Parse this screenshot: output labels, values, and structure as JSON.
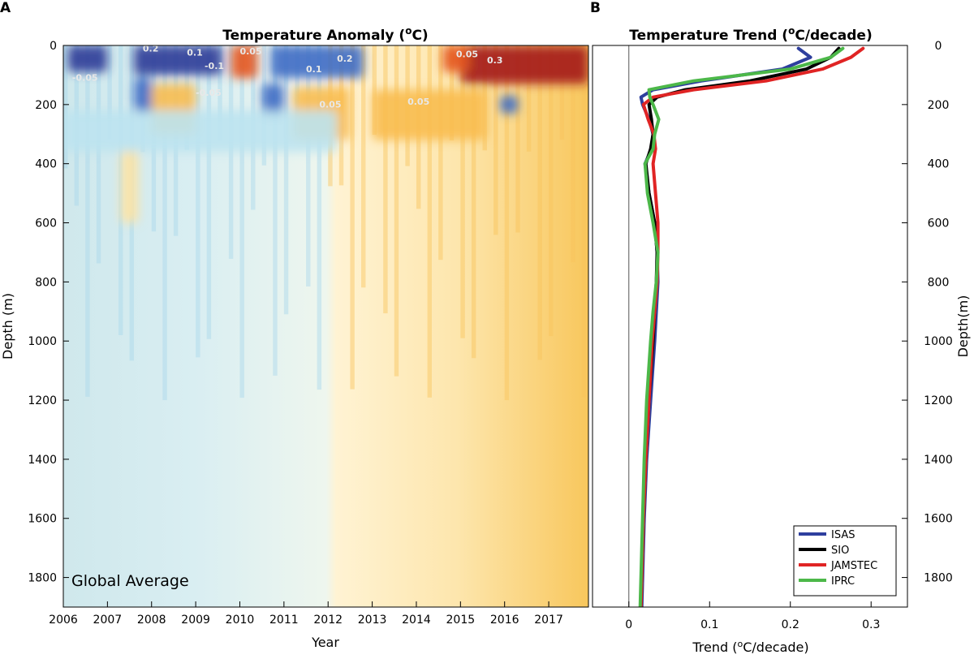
{
  "panel_a": {
    "letter": "A",
    "title_main": "Temperature Anomaly (",
    "title_sup": "o",
    "title_end": "C)",
    "xlabel": "Year",
    "ylabel": "Depth (m)",
    "annotation": "Global Average",
    "contour_labels": [
      "0.2",
      "0.1",
      "-0.1",
      "0.05",
      "-0.05",
      "0.1",
      "0.2",
      "0.3",
      "0.05",
      "-0.05",
      "0.05",
      "0.05"
    ]
  },
  "panel_b": {
    "letter": "B",
    "title_main": "Temperature Trend (",
    "title_sup": "o",
    "title_end": "C/decade)",
    "xlabel_main": "Trend (",
    "xlabel_sup": "o",
    "xlabel_end": "C/decade)",
    "ylabel": "Depth(m)"
  },
  "chart_data": [
    {
      "type": "heatmap",
      "title": "Temperature Anomaly (oC)",
      "xlabel": "Year",
      "ylabel": "Depth (m)",
      "xlim": [
        2006,
        2017.9
      ],
      "ylim": [
        0,
        1900
      ],
      "y_inverted": true,
      "x_ticks": [
        2006,
        2007,
        2008,
        2009,
        2010,
        2011,
        2012,
        2013,
        2014,
        2015,
        2016,
        2017
      ],
      "y_ticks": [
        0,
        200,
        400,
        600,
        800,
        1000,
        1200,
        1400,
        1600,
        1800
      ],
      "colormap": [
        "#2b3b97",
        "#3f6cc4",
        "#7bbce6",
        "#bde3f0",
        "#dff1f4",
        "#fff4d6",
        "#fde3a4",
        "#f8bd4f",
        "#f39a1e",
        "#e4551e",
        "#a3151b"
      ],
      "annotation": "Global Average",
      "regions": [
        {
          "x0": 2006.1,
          "x1": 2007.0,
          "y0": 0,
          "y1": 90,
          "value": -0.2
        },
        {
          "x0": 2007.6,
          "x1": 2009.6,
          "y0": 0,
          "y1": 100,
          "value": -0.2
        },
        {
          "x0": 2010.7,
          "x1": 2012.8,
          "y0": 0,
          "y1": 110,
          "value": -0.15
        },
        {
          "x0": 2009.8,
          "x1": 2010.4,
          "y0": 0,
          "y1": 110,
          "value": 0.15
        },
        {
          "x0": 2015.0,
          "x1": 2017.9,
          "y0": 0,
          "y1": 130,
          "value": 0.3
        },
        {
          "x0": 2014.6,
          "x1": 2015.2,
          "y0": 0,
          "y1": 90,
          "value": 0.15
        },
        {
          "x0": 2007.6,
          "x1": 2008.0,
          "y0": 110,
          "y1": 230,
          "value": -0.15
        },
        {
          "x0": 2010.5,
          "x1": 2011.0,
          "y0": 130,
          "y1": 240,
          "value": -0.15
        },
        {
          "x0": 2015.9,
          "x1": 2016.3,
          "y0": 170,
          "y1": 230,
          "value": -0.15
        },
        {
          "x0": 2008.0,
          "x1": 2009.0,
          "y0": 130,
          "y1": 300,
          "value": 0.08
        },
        {
          "x0": 2011.2,
          "x1": 2012.5,
          "y0": 140,
          "y1": 320,
          "value": 0.08
        },
        {
          "x0": 2013.0,
          "x1": 2015.6,
          "y0": 150,
          "y1": 320,
          "value": 0.08
        },
        {
          "x0": 2007.3,
          "x1": 2007.7,
          "y0": 350,
          "y1": 600,
          "value": 0.05
        },
        {
          "x0": 2006.0,
          "x1": 2012.2,
          "y0": 220,
          "y1": 360,
          "value": -0.05
        }
      ]
    },
    {
      "type": "line",
      "title": "Temperature Trend (oC/decade)",
      "xlabel": "Trend (oC/decade)",
      "ylabel": "Depth(m)",
      "xlim": [
        -0.045,
        0.345
      ],
      "ylim": [
        0,
        1900
      ],
      "y_inverted": true,
      "x_ticks": [
        0,
        0.1,
        0.2,
        0.3
      ],
      "y_ticks": [
        0,
        200,
        400,
        600,
        800,
        1000,
        1200,
        1400,
        1600,
        1800
      ],
      "legend_position": "bottom-right",
      "y": [
        10,
        40,
        80,
        120,
        150,
        175,
        200,
        250,
        300,
        350,
        400,
        500,
        600,
        700,
        800,
        900,
        1000,
        1200,
        1400,
        1600,
        1800,
        1900
      ],
      "series": [
        {
          "name": "ISAS",
          "color": "#2e3f9e",
          "values": [
            0.21,
            0.225,
            0.19,
            0.09,
            0.03,
            0.015,
            0.017,
            0.025,
            0.03,
            0.028,
            0.02,
            0.025,
            0.032,
            0.035,
            0.036,
            0.034,
            0.032,
            0.027,
            0.022,
            0.019,
            0.017,
            0.016
          ]
        },
        {
          "name": "SIO",
          "color": "#000000",
          "values": [
            0.26,
            0.25,
            0.22,
            0.15,
            0.07,
            0.035,
            0.025,
            0.028,
            0.03,
            0.027,
            0.021,
            0.025,
            0.032,
            0.035,
            0.034,
            0.032,
            0.03,
            0.025,
            0.021,
            0.018,
            0.016,
            0.015
          ]
        },
        {
          "name": "JAMSTEC",
          "color": "#e02424",
          "values": [
            0.29,
            0.275,
            0.24,
            0.17,
            0.08,
            0.03,
            0.018,
            0.024,
            0.031,
            0.033,
            0.03,
            0.033,
            0.036,
            0.036,
            0.035,
            0.032,
            0.029,
            0.025,
            0.021,
            0.018,
            0.016,
            0.015
          ]
        },
        {
          "name": "IPRC",
          "color": "#4cb849",
          "values": [
            0.265,
            0.25,
            0.2,
            0.08,
            0.025,
            0.026,
            0.03,
            0.037,
            0.032,
            0.03,
            0.02,
            0.023,
            0.03,
            0.036,
            0.034,
            0.03,
            0.027,
            0.022,
            0.019,
            0.017,
            0.015,
            0.014
          ]
        }
      ]
    }
  ]
}
